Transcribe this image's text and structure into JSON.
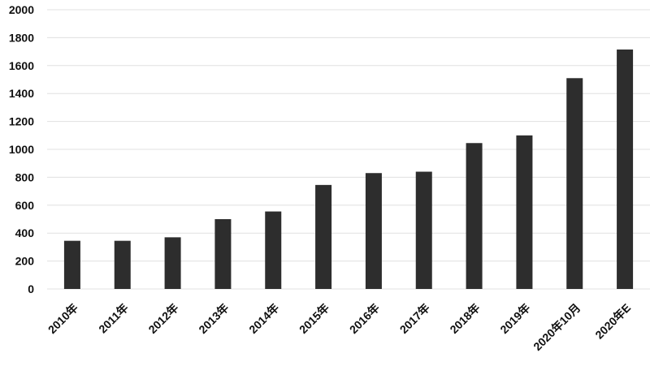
{
  "chart_data": {
    "type": "bar",
    "categories": [
      "2010年",
      "2011年",
      "2012年",
      "2013年",
      "2014年",
      "2015年",
      "2016年",
      "2017年",
      "2018年",
      "2019年",
      "2020年10月",
      "2020年E"
    ],
    "values": [
      345,
      345,
      370,
      500,
      555,
      745,
      830,
      840,
      1045,
      1100,
      1510,
      1715
    ],
    "color": "#2d2d2d",
    "ylim": [
      0,
      2000
    ],
    "yticks": [
      0,
      200,
      400,
      600,
      800,
      1000,
      1200,
      1400,
      1600,
      1800,
      2000
    ],
    "grid": true
  }
}
